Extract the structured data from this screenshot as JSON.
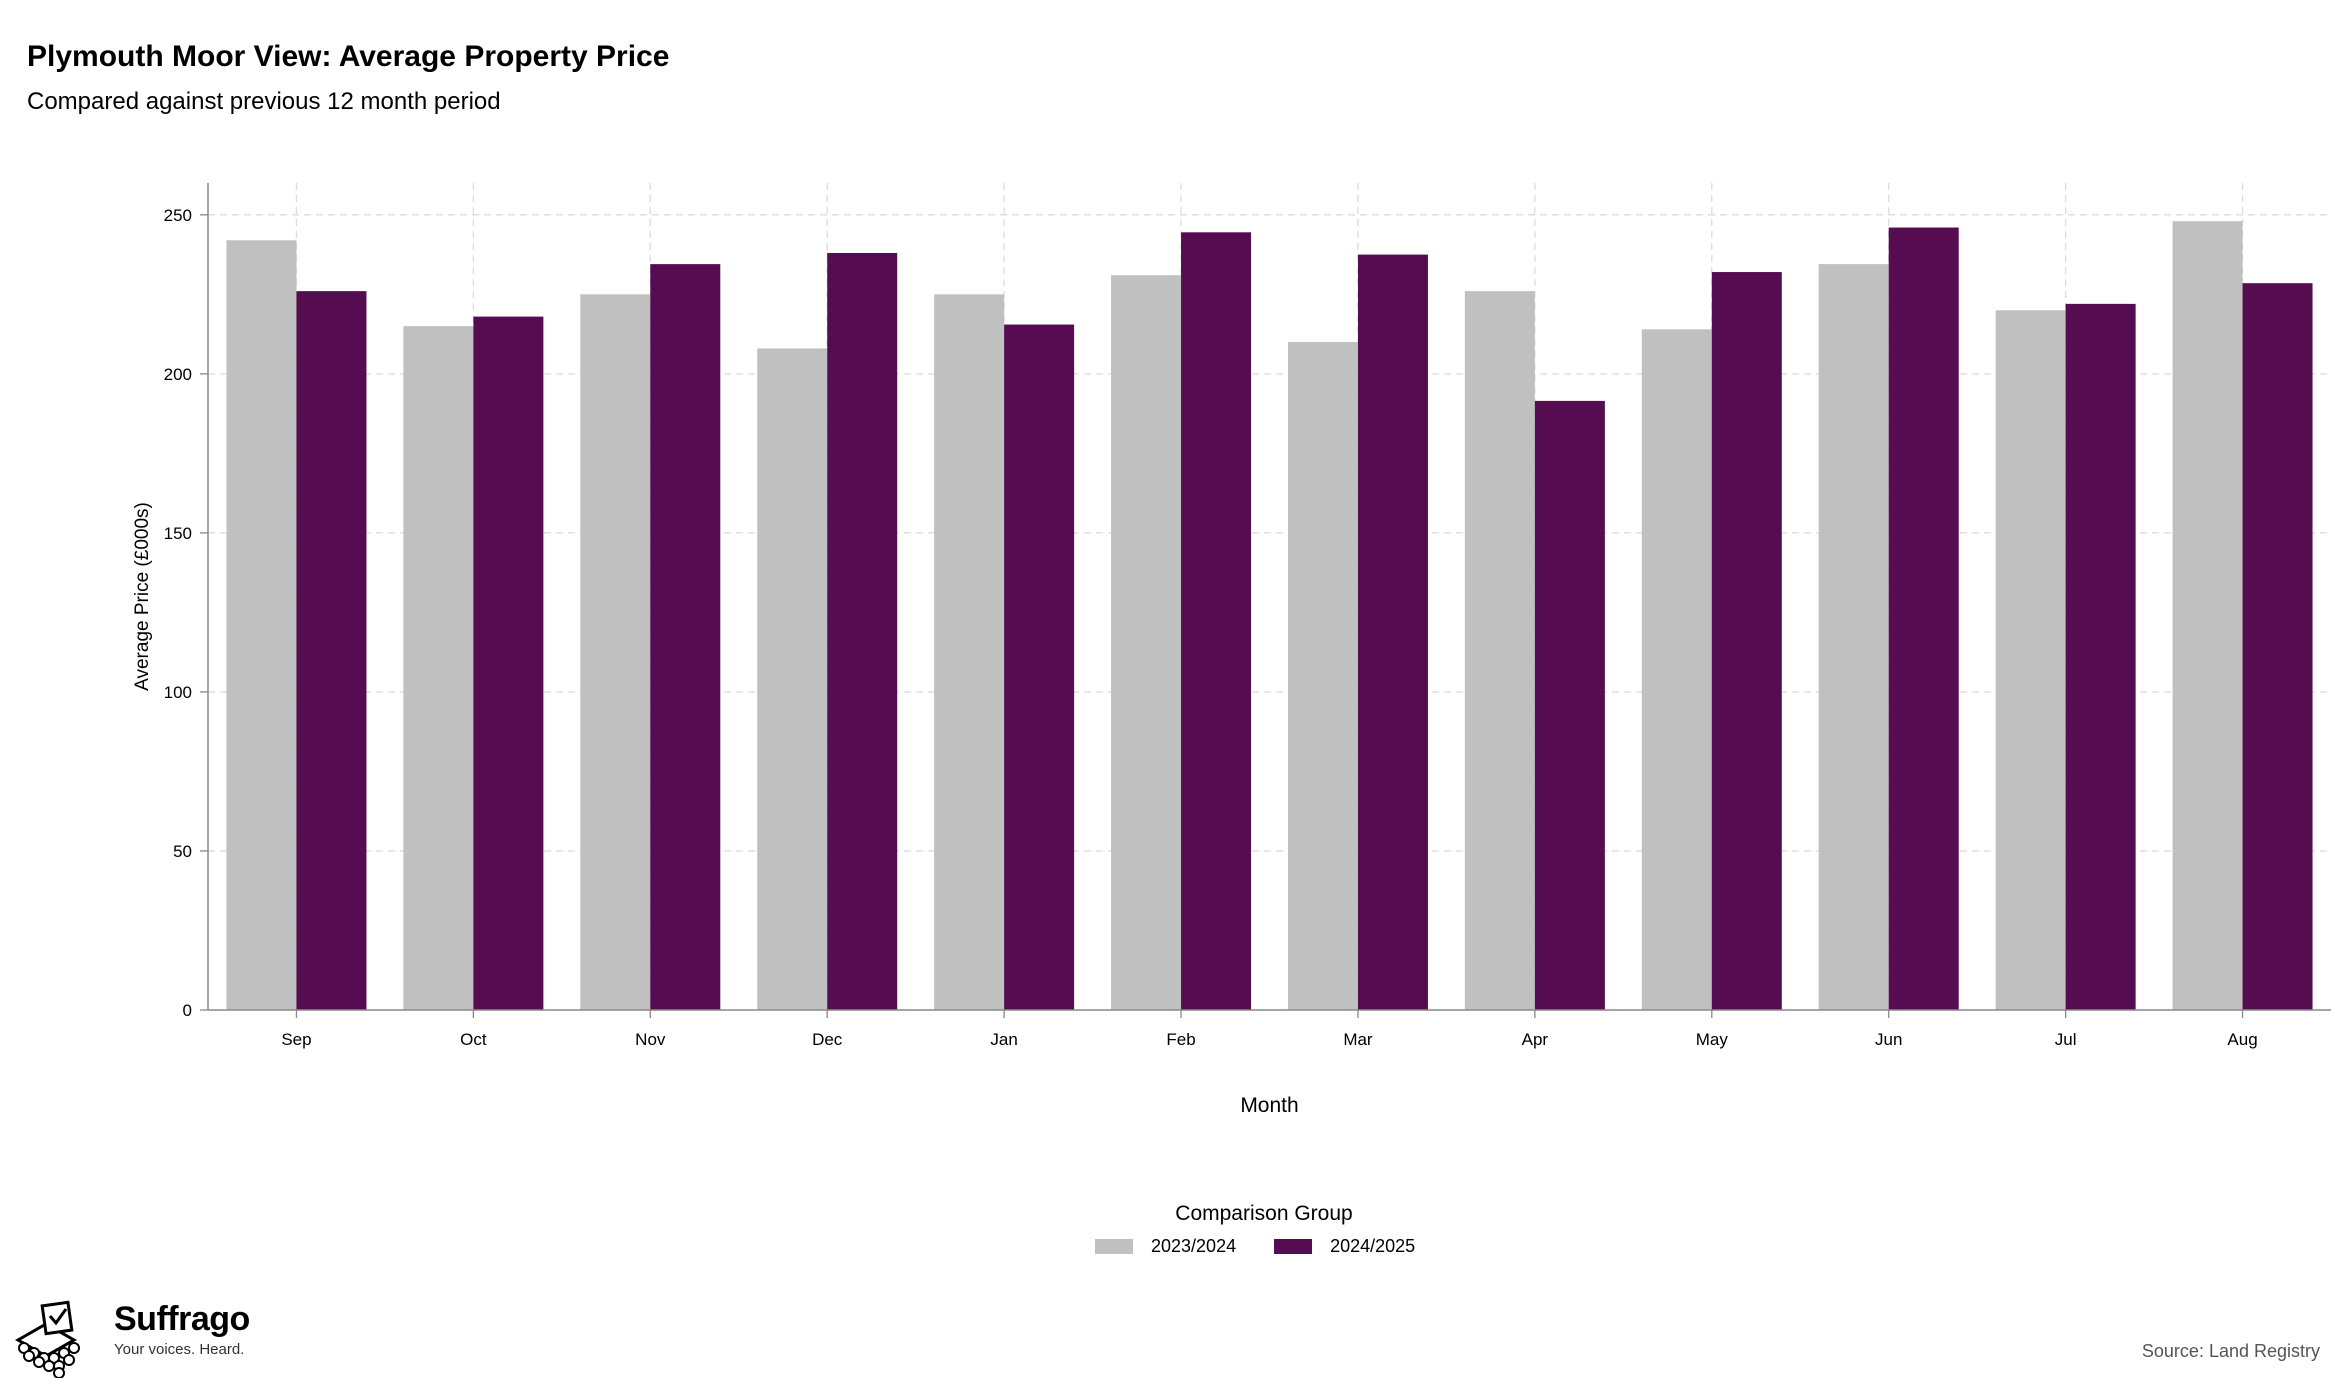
{
  "header": {
    "title": "Plymouth Moor View: Average Property Price",
    "subtitle": "Compared against previous 12 month period"
  },
  "legend": {
    "title": "Comparison Group",
    "items": [
      {
        "label": "2023/2024",
        "color": "#c0c0c0"
      },
      {
        "label": "2024/2025",
        "color": "#560c50"
      }
    ]
  },
  "footer": {
    "brand": "Suffrago",
    "tagline": "Your voices. Heard.",
    "source": "Source: Land Registry"
  },
  "chart_data": {
    "type": "bar",
    "title": "Plymouth Moor View: Average Property Price",
    "subtitle": "Compared against previous 12 month period",
    "xlabel": "Month",
    "ylabel": "Average Price (£000s)",
    "categories": [
      "Sep",
      "Oct",
      "Nov",
      "Dec",
      "Jan",
      "Feb",
      "Mar",
      "Apr",
      "May",
      "Jun",
      "Jul",
      "Aug"
    ],
    "series": [
      {
        "name": "2023/2024",
        "color": "#c0c0c0",
        "values": [
          242,
          215,
          225,
          208,
          225,
          231,
          210,
          226,
          214,
          234.5,
          220,
          248
        ]
      },
      {
        "name": "2024/2025",
        "color": "#560c50",
        "values": [
          226,
          218,
          234.5,
          238,
          215.5,
          244.5,
          237.5,
          191.5,
          232,
          246,
          222,
          228.5
        ]
      }
    ],
    "ylim": [
      0,
      260
    ],
    "yticks": [
      0,
      50,
      100,
      150,
      200,
      250
    ],
    "grid": true,
    "legend_position": "bottom"
  }
}
